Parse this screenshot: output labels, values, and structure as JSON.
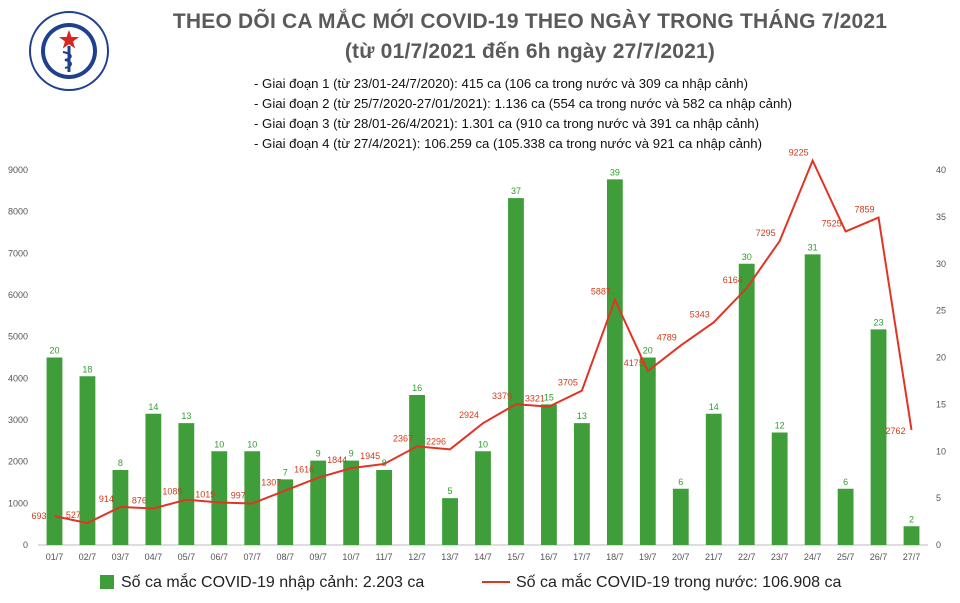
{
  "header": {
    "logo_label": "Bộ Y Tế — Ministry of Health",
    "title_line1": "THEO DÕI CA MẮC MỚI COVID-19 THEO NGÀY TRONG THÁNG 7/2021",
    "title_line2": "(từ 01/7/2021 đến 6h ngày 27/7/2021)"
  },
  "notes": [
    "- Giai đoạn 1 (từ 23/01-24/7/2020): 415 ca (106 ca trong nước và 309 ca nhập cảnh)",
    "- Giai đoạn 2 (từ 25/7/2020-27/01/2021): 1.136 ca (554 ca trong nước và 582 ca nhập cảnh)",
    "- Giai đoạn 3 (từ 28/01-26/4/2021): 1.301 ca (910 ca trong nước và 391 ca nhập cảnh)",
    "- Giai đoạn 4 (từ 27/4/2021): 106.259 ca (105.338 ca trong nước và 921 ca nhập cảnh)"
  ],
  "colors": {
    "bar": "#3f9e3a",
    "line": "#e03524",
    "bar_label": "#2f9e2f",
    "line_label": "#d23b1a"
  },
  "chart_data": {
    "type": "bar",
    "title": "THEO DÕI CA MẮC MỚI COVID-19 THEO NGÀY TRONG THÁNG 7/2021",
    "subtitle": "(từ 01/7/2021 đến 6h ngày 27/7/2021)",
    "categories": [
      "01/7",
      "02/7",
      "03/7",
      "04/7",
      "05/7",
      "06/7",
      "07/7",
      "08/7",
      "09/7",
      "10/7",
      "11/7",
      "12/7",
      "13/7",
      "14/7",
      "15/7",
      "16/7",
      "17/7",
      "18/7",
      "19/7",
      "20/7",
      "21/7",
      "22/7",
      "23/7",
      "24/7",
      "25/7",
      "26/7",
      "27/7"
    ],
    "series": [
      {
        "name": "Số ca mắc COVID-19 nhập cảnh: 2.203 ca",
        "type": "bar",
        "axis": "right",
        "values": [
          20,
          18,
          8,
          14,
          13,
          10,
          10,
          7,
          9,
          9,
          8,
          16,
          5,
          10,
          37,
          15,
          13,
          39,
          20,
          6,
          14,
          30,
          12,
          31,
          6,
          23,
          2
        ]
      },
      {
        "name": "Số ca mắc COVID-19 trong nước: 106.908 ca",
        "type": "line",
        "axis": "left",
        "values": [
          693,
          527,
          914,
          876,
          1089,
          1019,
          997,
          1307,
          1616,
          1844,
          1945,
          2367,
          2296,
          2924,
          3379,
          3321,
          3705,
          5887,
          4175,
          4789,
          5343,
          6164,
          7295,
          9225,
          7525,
          7859,
          2762
        ]
      }
    ],
    "left_axis": {
      "ylim": [
        0,
        9000
      ],
      "ticks": [
        "0",
        "1000",
        "2000",
        "3000",
        "4000",
        "5000",
        "6000",
        "7000",
        "8000",
        "9000"
      ]
    },
    "right_axis": {
      "ylim": [
        0,
        40
      ],
      "ticks": [
        "0",
        "5",
        "10",
        "15",
        "20",
        "25",
        "30",
        "35",
        "40"
      ]
    },
    "grid": false,
    "legend": "bottom"
  }
}
